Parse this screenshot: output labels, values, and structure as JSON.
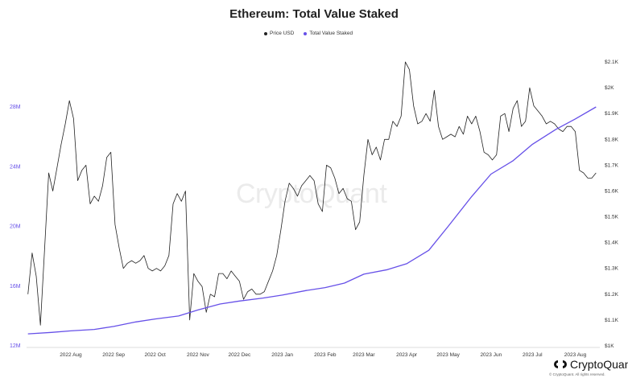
{
  "chart_data": {
    "type": "line",
    "title": "Ethereum: Total Value Staked",
    "legend_position": "top-center",
    "grid": false,
    "x_ticks": [
      "2022 Aug",
      "2022 Sep",
      "2022 Oct",
      "2022 Nov",
      "2022 Dec",
      "2023 Jan",
      "2023 Feb",
      "2023 Mar",
      "2023 Apr",
      "2023 May",
      "2023 Jun",
      "2023 Jul",
      "2023 Aug"
    ],
    "left_axis": {
      "ticks": [
        "12M",
        "16M",
        "20M",
        "24M",
        "28M"
      ],
      "ylim": [
        12000000,
        28000000
      ]
    },
    "right_axis": {
      "ticks": [
        "$1K",
        "$1.1K",
        "$1.2K",
        "$1.3K",
        "$1.4K",
        "$1.5K",
        "$1.6K",
        "$1.7K",
        "$1.8K",
        "$1.9K",
        "$2K",
        "$2.1K"
      ],
      "ylim": [
        1000,
        2100
      ]
    },
    "series": [
      {
        "name": "Price USD",
        "axis": "right",
        "color": "#222222",
        "points": [
          [
            "2022-07-15",
            1200
          ],
          [
            "2022-07-18",
            1360
          ],
          [
            "2022-07-21",
            1270
          ],
          [
            "2022-07-24",
            1080
          ],
          [
            "2022-07-27",
            1370
          ],
          [
            "2022-07-30",
            1670
          ],
          [
            "2022-08-02",
            1600
          ],
          [
            "2022-08-05",
            1690
          ],
          [
            "2022-08-08",
            1780
          ],
          [
            "2022-08-11",
            1860
          ],
          [
            "2022-08-14",
            1950
          ],
          [
            "2022-08-17",
            1880
          ],
          [
            "2022-08-20",
            1640
          ],
          [
            "2022-08-23",
            1680
          ],
          [
            "2022-08-26",
            1700
          ],
          [
            "2022-08-29",
            1550
          ],
          [
            "2022-09-01",
            1580
          ],
          [
            "2022-09-04",
            1560
          ],
          [
            "2022-09-07",
            1620
          ],
          [
            "2022-09-10",
            1730
          ],
          [
            "2022-09-13",
            1750
          ],
          [
            "2022-09-16",
            1470
          ],
          [
            "2022-09-19",
            1380
          ],
          [
            "2022-09-22",
            1300
          ],
          [
            "2022-09-25",
            1320
          ],
          [
            "2022-09-28",
            1330
          ],
          [
            "2022-10-01",
            1320
          ],
          [
            "2022-10-04",
            1330
          ],
          [
            "2022-10-07",
            1350
          ],
          [
            "2022-10-10",
            1300
          ],
          [
            "2022-10-13",
            1290
          ],
          [
            "2022-10-16",
            1300
          ],
          [
            "2022-10-19",
            1290
          ],
          [
            "2022-10-22",
            1310
          ],
          [
            "2022-10-25",
            1350
          ],
          [
            "2022-10-28",
            1550
          ],
          [
            "2022-10-31",
            1590
          ],
          [
            "2022-11-03",
            1560
          ],
          [
            "2022-11-06",
            1600
          ],
          [
            "2022-11-09",
            1100
          ],
          [
            "2022-11-12",
            1280
          ],
          [
            "2022-11-15",
            1250
          ],
          [
            "2022-11-18",
            1230
          ],
          [
            "2022-11-21",
            1130
          ],
          [
            "2022-11-24",
            1200
          ],
          [
            "2022-11-27",
            1190
          ],
          [
            "2022-11-30",
            1280
          ],
          [
            "2022-12-03",
            1280
          ],
          [
            "2022-12-06",
            1260
          ],
          [
            "2022-12-09",
            1290
          ],
          [
            "2022-12-12",
            1270
          ],
          [
            "2022-12-15",
            1250
          ],
          [
            "2022-12-18",
            1180
          ],
          [
            "2022-12-21",
            1210
          ],
          [
            "2022-12-24",
            1220
          ],
          [
            "2022-12-27",
            1200
          ],
          [
            "2022-12-30",
            1200
          ],
          [
            "2023-01-02",
            1210
          ],
          [
            "2023-01-05",
            1250
          ],
          [
            "2023-01-08",
            1290
          ],
          [
            "2023-01-11",
            1350
          ],
          [
            "2023-01-14",
            1450
          ],
          [
            "2023-01-17",
            1560
          ],
          [
            "2023-01-20",
            1630
          ],
          [
            "2023-01-23",
            1610
          ],
          [
            "2023-01-26",
            1580
          ],
          [
            "2023-01-29",
            1620
          ],
          [
            "2023-02-01",
            1640
          ],
          [
            "2023-02-04",
            1660
          ],
          [
            "2023-02-07",
            1640
          ],
          [
            "2023-02-10",
            1550
          ],
          [
            "2023-02-13",
            1520
          ],
          [
            "2023-02-16",
            1700
          ],
          [
            "2023-02-19",
            1690
          ],
          [
            "2023-02-22",
            1650
          ],
          [
            "2023-02-25",
            1590
          ],
          [
            "2023-02-28",
            1610
          ],
          [
            "2023-03-03",
            1570
          ],
          [
            "2023-03-06",
            1560
          ],
          [
            "2023-03-09",
            1450
          ],
          [
            "2023-03-12",
            1480
          ],
          [
            "2023-03-15",
            1660
          ],
          [
            "2023-03-18",
            1800
          ],
          [
            "2023-03-21",
            1740
          ],
          [
            "2023-03-24",
            1770
          ],
          [
            "2023-03-27",
            1720
          ],
          [
            "2023-03-30",
            1800
          ],
          [
            "2023-04-02",
            1800
          ],
          [
            "2023-04-05",
            1870
          ],
          [
            "2023-04-08",
            1850
          ],
          [
            "2023-04-11",
            1890
          ],
          [
            "2023-04-14",
            2100
          ],
          [
            "2023-04-17",
            2070
          ],
          [
            "2023-04-20",
            1930
          ],
          [
            "2023-04-23",
            1860
          ],
          [
            "2023-04-26",
            1870
          ],
          [
            "2023-04-29",
            1900
          ],
          [
            "2023-05-02",
            1870
          ],
          [
            "2023-05-05",
            1990
          ],
          [
            "2023-05-08",
            1850
          ],
          [
            "2023-05-11",
            1800
          ],
          [
            "2023-05-14",
            1810
          ],
          [
            "2023-05-17",
            1820
          ],
          [
            "2023-05-20",
            1810
          ],
          [
            "2023-05-23",
            1850
          ],
          [
            "2023-05-26",
            1820
          ],
          [
            "2023-05-29",
            1890
          ],
          [
            "2023-06-01",
            1860
          ],
          [
            "2023-06-04",
            1890
          ],
          [
            "2023-06-07",
            1830
          ],
          [
            "2023-06-10",
            1750
          ],
          [
            "2023-06-13",
            1740
          ],
          [
            "2023-06-16",
            1720
          ],
          [
            "2023-06-19",
            1740
          ],
          [
            "2023-06-22",
            1890
          ],
          [
            "2023-06-25",
            1900
          ],
          [
            "2023-06-28",
            1830
          ],
          [
            "2023-07-01",
            1920
          ],
          [
            "2023-07-04",
            1950
          ],
          [
            "2023-07-07",
            1850
          ],
          [
            "2023-07-10",
            1870
          ],
          [
            "2023-07-13",
            2000
          ],
          [
            "2023-07-16",
            1930
          ],
          [
            "2023-07-19",
            1910
          ],
          [
            "2023-07-22",
            1890
          ],
          [
            "2023-07-25",
            1860
          ],
          [
            "2023-07-28",
            1870
          ],
          [
            "2023-07-31",
            1860
          ],
          [
            "2023-08-03",
            1840
          ],
          [
            "2023-08-06",
            1830
          ],
          [
            "2023-08-09",
            1850
          ],
          [
            "2023-08-12",
            1850
          ],
          [
            "2023-08-15",
            1830
          ],
          [
            "2023-08-18",
            1680
          ],
          [
            "2023-08-21",
            1670
          ],
          [
            "2023-08-24",
            1650
          ],
          [
            "2023-08-27",
            1650
          ],
          [
            "2023-08-30",
            1670
          ]
        ]
      },
      {
        "name": "Total Value Staked",
        "axis": "left",
        "color": "#6650e8",
        "points": [
          [
            "2022-07-15",
            12800000
          ],
          [
            "2022-08-01",
            12900000
          ],
          [
            "2022-08-15",
            13000000
          ],
          [
            "2022-09-01",
            13100000
          ],
          [
            "2022-09-15",
            13300000
          ],
          [
            "2022-10-01",
            13600000
          ],
          [
            "2022-10-15",
            13800000
          ],
          [
            "2022-11-01",
            14000000
          ],
          [
            "2022-11-15",
            14400000
          ],
          [
            "2022-12-01",
            14800000
          ],
          [
            "2022-12-15",
            15000000
          ],
          [
            "2023-01-01",
            15200000
          ],
          [
            "2023-01-15",
            15400000
          ],
          [
            "2023-02-01",
            15700000
          ],
          [
            "2023-02-15",
            15900000
          ],
          [
            "2023-03-01",
            16200000
          ],
          [
            "2023-03-15",
            16800000
          ],
          [
            "2023-04-01",
            17100000
          ],
          [
            "2023-04-15",
            17500000
          ],
          [
            "2023-05-01",
            18400000
          ],
          [
            "2023-05-15",
            20000000
          ],
          [
            "2023-06-01",
            22000000
          ],
          [
            "2023-06-15",
            23500000
          ],
          [
            "2023-07-01",
            24400000
          ],
          [
            "2023-07-15",
            25500000
          ],
          [
            "2023-08-01",
            26500000
          ],
          [
            "2023-08-15",
            27200000
          ],
          [
            "2023-08-30",
            28000000
          ]
        ]
      }
    ]
  },
  "brand": {
    "name": "CryptoQuant",
    "watermark": "CryptoQuant",
    "copyright": "© CryptoQuant. All rights reserved."
  }
}
